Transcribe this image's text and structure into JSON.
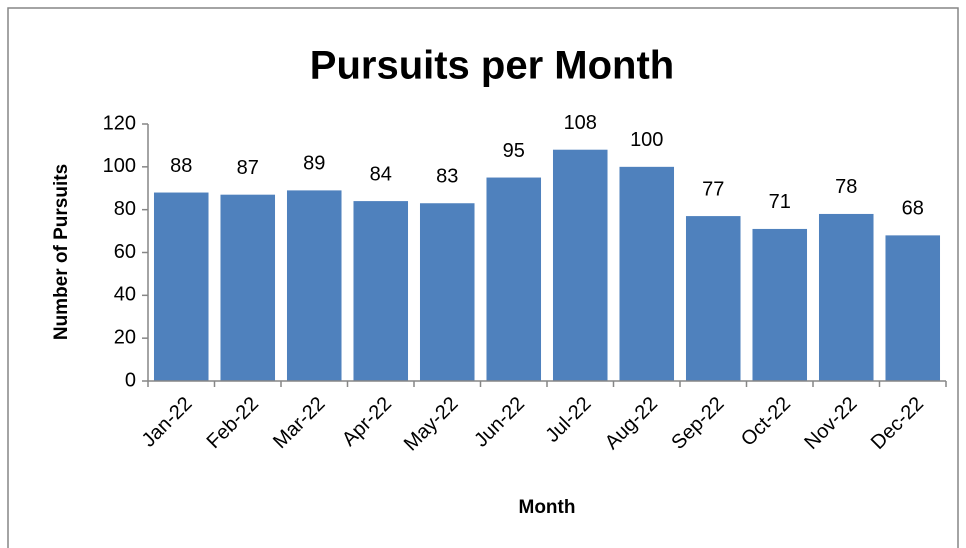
{
  "chart_data": {
    "type": "bar",
    "title": "Pursuits per Month",
    "x_label": "Month",
    "y_label": "Number of Pursuits",
    "categories": [
      "Jan-22",
      "Feb-22",
      "Mar-22",
      "Apr-22",
      "May-22",
      "Jun-22",
      "Jul-22",
      "Aug-22",
      "Sep-22",
      "Oct-22",
      "Nov-22",
      "Dec-22"
    ],
    "values": [
      88,
      87,
      89,
      84,
      83,
      95,
      108,
      100,
      77,
      71,
      78,
      68
    ],
    "color": "#4f81bd",
    "ylim": [
      0,
      120
    ],
    "yticks": [
      0,
      20,
      40,
      60,
      80,
      100,
      120
    ],
    "grid": false
  }
}
